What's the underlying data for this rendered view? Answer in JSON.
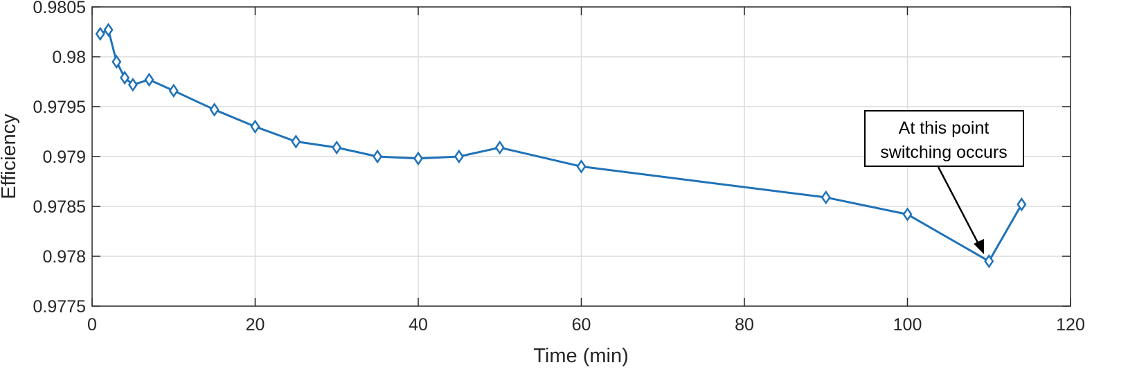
{
  "chart_data": {
    "type": "line",
    "title": "",
    "xlabel": "Time (min)",
    "ylabel": "Efficiency",
    "xlim": [
      0,
      120
    ],
    "ylim": [
      0.9775,
      0.9805
    ],
    "x_ticks": [
      0,
      20,
      40,
      60,
      80,
      100,
      120
    ],
    "x_tick_labels": [
      "0",
      "20",
      "40",
      "60",
      "80",
      "100",
      "120"
    ],
    "y_ticks": [
      0.9775,
      0.978,
      0.9785,
      0.979,
      0.9795,
      0.98,
      0.9805
    ],
    "y_tick_labels": [
      "0.9775",
      "0.978",
      "0.9785",
      "0.979",
      "0.9795",
      "0.98",
      "0.9805"
    ],
    "grid": true,
    "legend": "none",
    "series": [
      {
        "color": "#1f72b8",
        "marker": "diamond",
        "points": [
          {
            "x": 1,
            "y": 0.98023
          },
          {
            "x": 2,
            "y": 0.98027
          },
          {
            "x": 3,
            "y": 0.97995
          },
          {
            "x": 4,
            "y": 0.97979
          },
          {
            "x": 5,
            "y": 0.97972
          },
          {
            "x": 7,
            "y": 0.97977
          },
          {
            "x": 10,
            "y": 0.97966
          },
          {
            "x": 15,
            "y": 0.97947
          },
          {
            "x": 20,
            "y": 0.9793
          },
          {
            "x": 25,
            "y": 0.97915
          },
          {
            "x": 30,
            "y": 0.97909
          },
          {
            "x": 35,
            "y": 0.979
          },
          {
            "x": 40,
            "y": 0.97898
          },
          {
            "x": 45,
            "y": 0.979
          },
          {
            "x": 50,
            "y": 0.97909
          },
          {
            "x": 60,
            "y": 0.9789
          },
          {
            "x": 90,
            "y": 0.97859
          },
          {
            "x": 100,
            "y": 0.97842
          },
          {
            "x": 110,
            "y": 0.97795
          },
          {
            "x": 114,
            "y": 0.97852
          }
        ]
      }
    ],
    "annotation": {
      "lines": [
        "At this point",
        "switching occurs"
      ],
      "target": {
        "x": 110,
        "y": 0.97795
      }
    }
  }
}
